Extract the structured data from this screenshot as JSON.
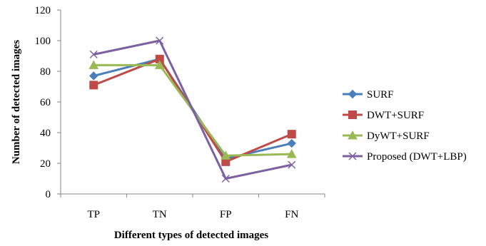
{
  "chart_data": {
    "type": "line",
    "title": "",
    "xlabel": "Different types of detected images",
    "ylabel": "Number of detected images",
    "categories": [
      "TP",
      "TN",
      "FP",
      "FN"
    ],
    "ylim": [
      0,
      120
    ],
    "yticks": [
      0,
      20,
      40,
      60,
      80,
      100,
      120
    ],
    "grid": false,
    "legend_position": "right",
    "series": [
      {
        "name": "SURF",
        "values": [
          77,
          88,
          23,
          33
        ],
        "color": "#4a7ebb",
        "marker": "diamond"
      },
      {
        "name": "DWT+SURF",
        "values": [
          71,
          88,
          21,
          39
        ],
        "color": "#be4b48",
        "marker": "square"
      },
      {
        "name": "DyWT+SURF",
        "values": [
          84,
          84,
          25,
          26
        ],
        "color": "#98b954",
        "marker": "triangle"
      },
      {
        "name": "Proposed (DWT+LBP)",
        "values": [
          91,
          100,
          10,
          19
        ],
        "color": "#7d60a0",
        "marker": "x"
      }
    ]
  }
}
